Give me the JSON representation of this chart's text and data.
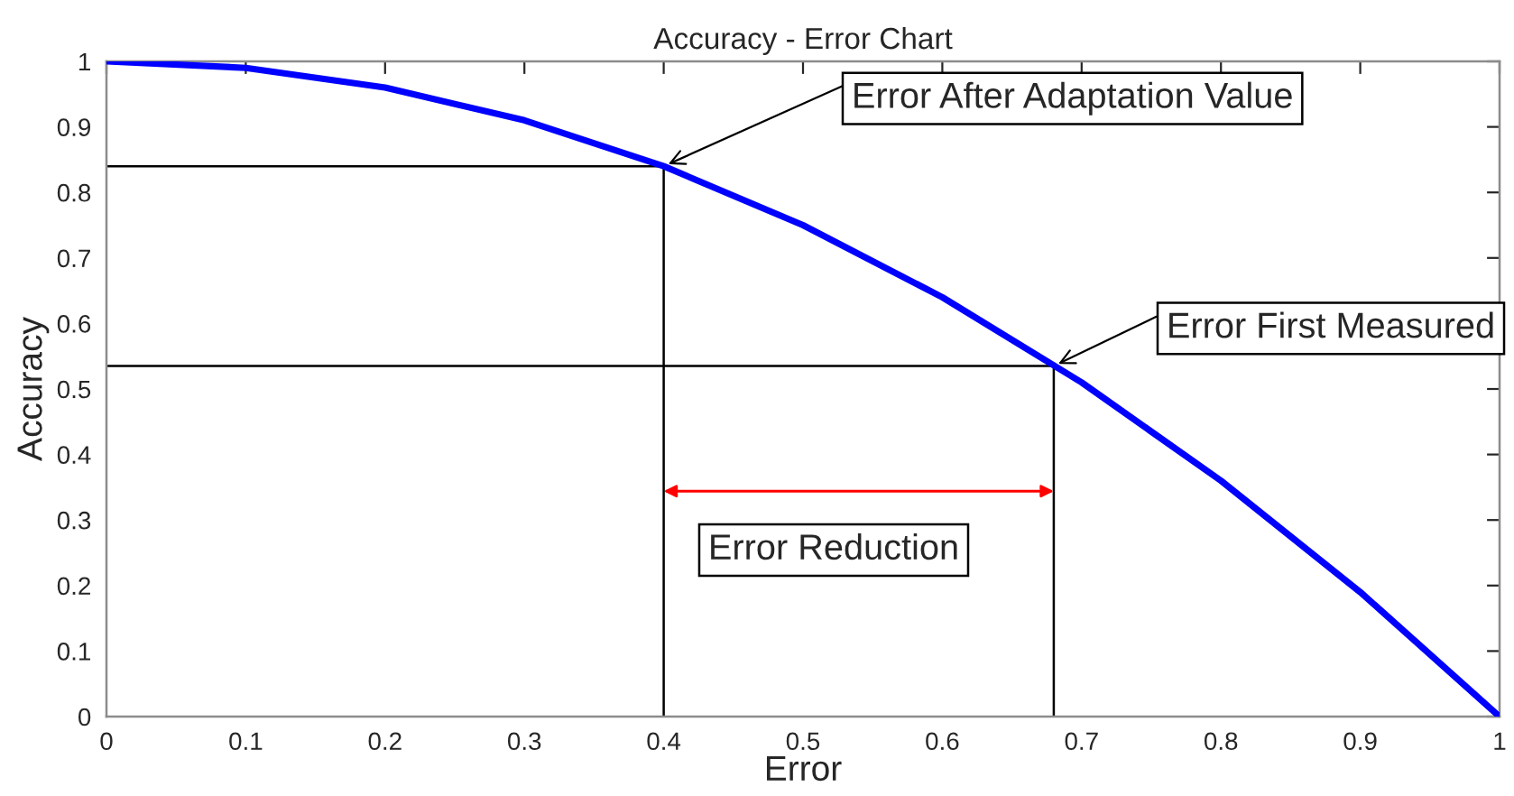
{
  "chart_data": {
    "type": "line",
    "title": "Accuracy - Error Chart",
    "xlabel": "Error",
    "ylabel": "Accuracy",
    "xlim": [
      0,
      1
    ],
    "ylim": [
      0,
      1
    ],
    "xticks": [
      0,
      0.1,
      0.2,
      0.3,
      0.4,
      0.5,
      0.6,
      0.7,
      0.8,
      0.9,
      1
    ],
    "yticks": [
      0,
      0.1,
      0.2,
      0.3,
      0.4,
      0.5,
      0.6,
      0.7,
      0.8,
      0.9,
      1
    ],
    "grid": false,
    "series": [
      {
        "color": "#0000ff",
        "x": [
          0,
          0.1,
          0.2,
          0.3,
          0.4,
          0.5,
          0.6,
          0.7,
          0.8,
          0.9,
          1
        ],
        "values": [
          1,
          0.99,
          0.96,
          0.91,
          0.84,
          0.75,
          0.64,
          0.51,
          0.36,
          0.19,
          0
        ]
      },
      {
        "color": "#000000",
        "x": [
          0,
          0.4,
          0.4
        ],
        "values": [
          0.84,
          0.84,
          0
        ]
      },
      {
        "color": "#000000",
        "x": [
          0,
          0.68,
          0.68
        ],
        "values": [
          0.535,
          0.535,
          0
        ]
      }
    ],
    "annotations": [
      {
        "text": "Error After Adaptation Value",
        "x": 0.4,
        "y": 0.84
      },
      {
        "text": "Error First Measured",
        "x": 0.68,
        "y": 0.535
      },
      "Error Reduction"
    ]
  }
}
